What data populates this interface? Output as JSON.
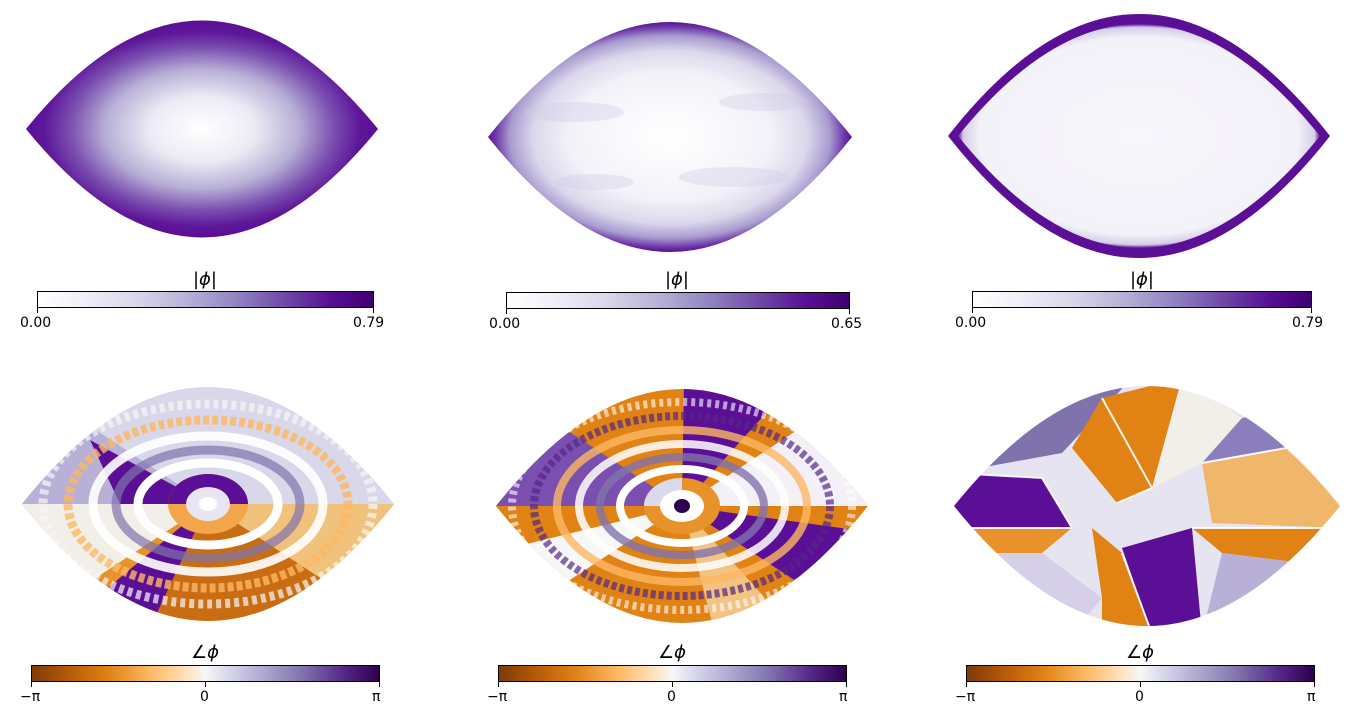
{
  "chart_data": [
    {
      "type": "heatmap",
      "panel": "top-left",
      "quantity": "magnitude",
      "colorbar_label": "|ϕ|",
      "ticks": [
        "0.00",
        "0.79"
      ],
      "vmin": 0.0,
      "vmax": 0.79,
      "colormap": "white-purple"
    },
    {
      "type": "heatmap",
      "panel": "top-center",
      "quantity": "magnitude",
      "colorbar_label": "|ϕ|",
      "ticks": [
        "0.00",
        "0.65"
      ],
      "vmin": 0.0,
      "vmax": 0.65,
      "colormap": "white-purple"
    },
    {
      "type": "heatmap",
      "panel": "top-right",
      "quantity": "magnitude",
      "colorbar_label": "|ϕ|",
      "ticks": [
        "0.00",
        "0.79"
      ],
      "vmin": 0.0,
      "vmax": 0.79,
      "colormap": "white-purple"
    },
    {
      "type": "heatmap",
      "panel": "bottom-left",
      "quantity": "phase",
      "colorbar_label": "∠ϕ",
      "ticks": [
        "−π",
        "0",
        "π"
      ],
      "colormap": "orange-white-purple"
    },
    {
      "type": "heatmap",
      "panel": "bottom-center",
      "quantity": "phase",
      "colorbar_label": "∠ϕ",
      "ticks": [
        "−π",
        "0",
        "π"
      ],
      "colormap": "orange-white-purple"
    },
    {
      "type": "heatmap",
      "panel": "bottom-right",
      "quantity": "phase",
      "colorbar_label": "∠ϕ",
      "ticks": [
        "−π",
        "0",
        "π"
      ],
      "colormap": "orange-white-purple"
    }
  ],
  "colors": {
    "purple_dark": "#570d95",
    "purple_mid": "#8f81c0",
    "white": "#ffffff",
    "orange_dark": "#b35806",
    "orange_mid": "#e08214",
    "orange_light": "#fdb863"
  }
}
